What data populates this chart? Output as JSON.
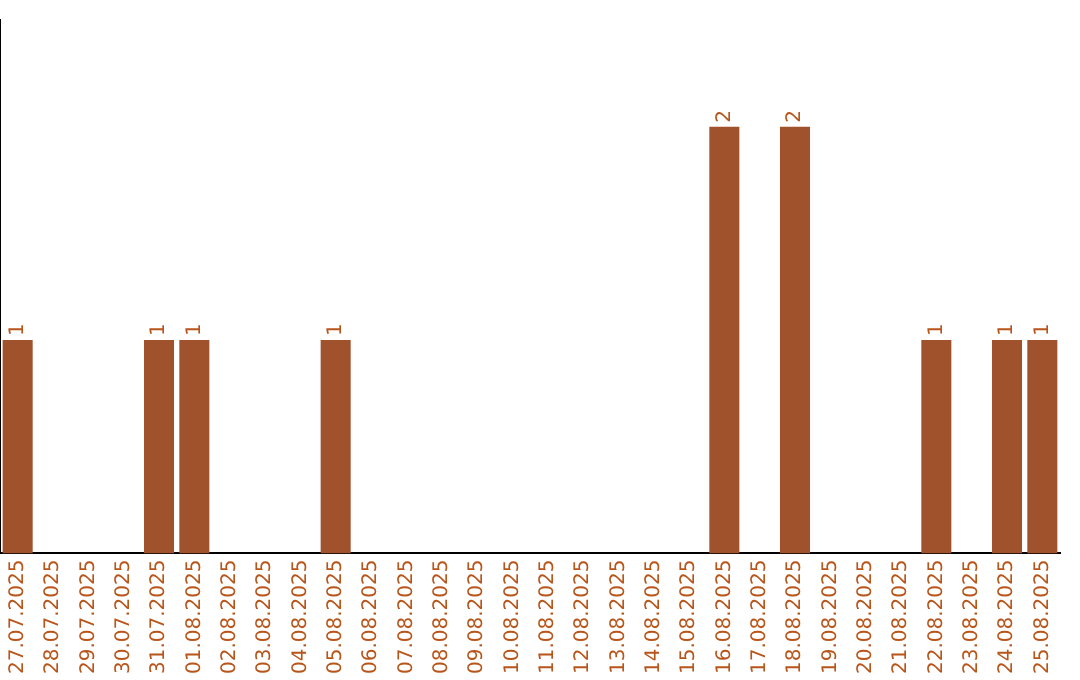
{
  "chart_data": {
    "type": "bar",
    "categories": [
      "27.07.2025",
      "28.07.2025",
      "29.07.2025",
      "30.07.2025",
      "31.07.2025",
      "01.08.2025",
      "02.08.2025",
      "03.08.2025",
      "04.08.2025",
      "05.08.2025",
      "06.08.2025",
      "07.08.2025",
      "08.08.2025",
      "09.08.2025",
      "10.08.2025",
      "11.08.2025",
      "12.08.2025",
      "13.08.2025",
      "14.08.2025",
      "15.08.2025",
      "16.08.2025",
      "17.08.2025",
      "18.08.2025",
      "19.08.2025",
      "20.08.2025",
      "21.08.2025",
      "22.08.2025",
      "23.08.2025",
      "24.08.2025",
      "25.08.2025"
    ],
    "values": [
      1,
      0,
      0,
      0,
      1,
      1,
      0,
      0,
      0,
      1,
      0,
      0,
      0,
      0,
      0,
      0,
      0,
      0,
      0,
      0,
      2,
      0,
      2,
      0,
      0,
      0,
      1,
      0,
      1,
      1
    ],
    "value_labels": [
      "1",
      null,
      null,
      null,
      "1",
      "1",
      null,
      null,
      null,
      "1",
      null,
      null,
      null,
      null,
      null,
      null,
      null,
      null,
      null,
      null,
      "2",
      null,
      "2",
      null,
      null,
      null,
      "1",
      null,
      "1",
      "1"
    ],
    "color": "#a0522d",
    "grid": false,
    "legend": false,
    "tick_labels": "x"
  }
}
